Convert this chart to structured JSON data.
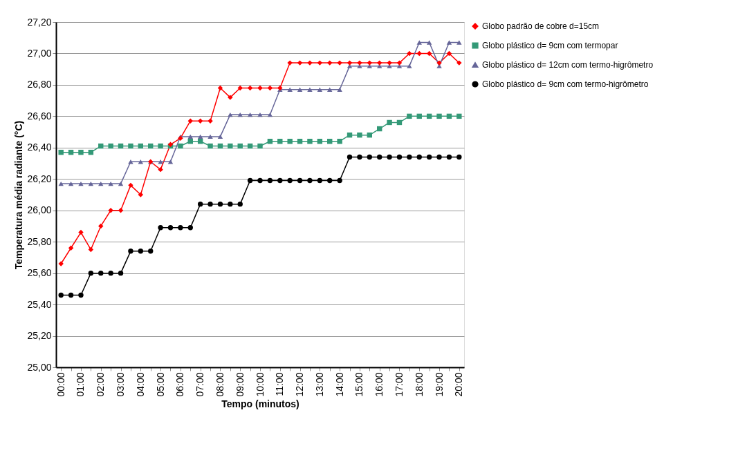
{
  "chart_data": {
    "type": "line",
    "xlabel": "Tempo (minutos)",
    "ylabel": "Temperatura média radiante (°C)",
    "categories": [
      "00:00",
      null,
      "01:00",
      null,
      "02:00",
      null,
      "03:00",
      null,
      "04:00",
      null,
      "05:00",
      null,
      "06:00",
      null,
      "07:00",
      null,
      "08:00",
      null,
      "09:00",
      null,
      "10:00",
      null,
      "11:00",
      null,
      "12:00",
      null,
      "13:00",
      null,
      "14:00",
      null,
      "15:00",
      null,
      "16:00",
      null,
      "17:00",
      null,
      "18:00",
      null,
      "19:00",
      null,
      "20:00"
    ],
    "ylim": [
      25,
      27.2
    ],
    "yticks": [
      {
        "value": 25,
        "label": "25,00"
      },
      {
        "value": 25.2,
        "label": "25,20"
      },
      {
        "value": 25.4,
        "label": "25,40"
      },
      {
        "value": 25.6,
        "label": "25,60"
      },
      {
        "value": 25.8,
        "label": "25,80"
      },
      {
        "value": 26,
        "label": "26,00"
      },
      {
        "value": 26.2,
        "label": "26,20"
      },
      {
        "value": 26.4,
        "label": "26,40"
      },
      {
        "value": 26.6,
        "label": "26,60"
      },
      {
        "value": 26.8,
        "label": "26,80"
      },
      {
        "value": 27,
        "label": "27,00"
      },
      {
        "value": 27.2,
        "label": "27,20"
      }
    ],
    "grid": "y",
    "legend": "right",
    "line_style": "solid",
    "series": [
      {
        "name": "Globo padrão de cobre d=15cm",
        "color": "#ff0000",
        "marker": "diamond",
        "values": [
          25.66,
          25.76,
          25.86,
          25.75,
          25.9,
          26.0,
          26.0,
          26.16,
          26.1,
          26.31,
          26.26,
          26.42,
          26.46,
          26.57,
          26.57,
          26.57,
          26.78,
          26.72,
          26.78,
          26.78,
          26.78,
          26.78,
          26.78,
          26.94,
          26.94,
          26.94,
          26.94,
          26.94,
          26.94,
          26.94,
          26.94,
          26.94,
          26.94,
          26.94,
          26.94,
          27.0,
          27.0,
          27.0,
          26.94,
          27.0,
          26.94
        ]
      },
      {
        "name": "Globo plástico d= 9cm com termopar",
        "color": "#339977",
        "marker": "square",
        "values": [
          26.37,
          26.37,
          26.37,
          26.37,
          26.41,
          26.41,
          26.41,
          26.41,
          26.41,
          26.41,
          26.41,
          26.41,
          26.41,
          26.44,
          26.44,
          26.41,
          26.41,
          26.41,
          26.41,
          26.41,
          26.41,
          26.44,
          26.44,
          26.44,
          26.44,
          26.44,
          26.44,
          26.44,
          26.44,
          26.48,
          26.48,
          26.48,
          26.52,
          26.56,
          26.56,
          26.6,
          26.6,
          26.6,
          26.6,
          26.6,
          26.6
        ]
      },
      {
        "name": "Globo plástico d= 12cm com termo-higrômetro",
        "color": "#666699",
        "marker": "triangle",
        "values": [
          26.17,
          26.17,
          26.17,
          26.17,
          26.17,
          26.17,
          26.17,
          26.31,
          26.31,
          26.31,
          26.31,
          26.31,
          26.47,
          26.47,
          26.47,
          26.47,
          26.47,
          26.61,
          26.61,
          26.61,
          26.61,
          26.61,
          26.77,
          26.77,
          26.77,
          26.77,
          26.77,
          26.77,
          26.77,
          26.92,
          26.92,
          26.92,
          26.92,
          26.92,
          26.92,
          26.92,
          27.07,
          27.07,
          26.92,
          27.07,
          27.07
        ]
      },
      {
        "name": "Globo plástico d= 9cm com termo-higrômetro",
        "color": "#000000",
        "marker": "circle",
        "values": [
          25.46,
          25.46,
          25.46,
          25.6,
          25.6,
          25.6,
          25.6,
          25.74,
          25.74,
          25.74,
          25.89,
          25.89,
          25.89,
          25.89,
          26.04,
          26.04,
          26.04,
          26.04,
          26.04,
          26.19,
          26.19,
          26.19,
          26.19,
          26.19,
          26.19,
          26.19,
          26.19,
          26.19,
          26.19,
          26.34,
          26.34,
          26.34,
          26.34,
          26.34,
          26.34,
          26.34,
          26.34,
          26.34,
          26.34,
          26.34,
          26.34
        ]
      }
    ]
  }
}
